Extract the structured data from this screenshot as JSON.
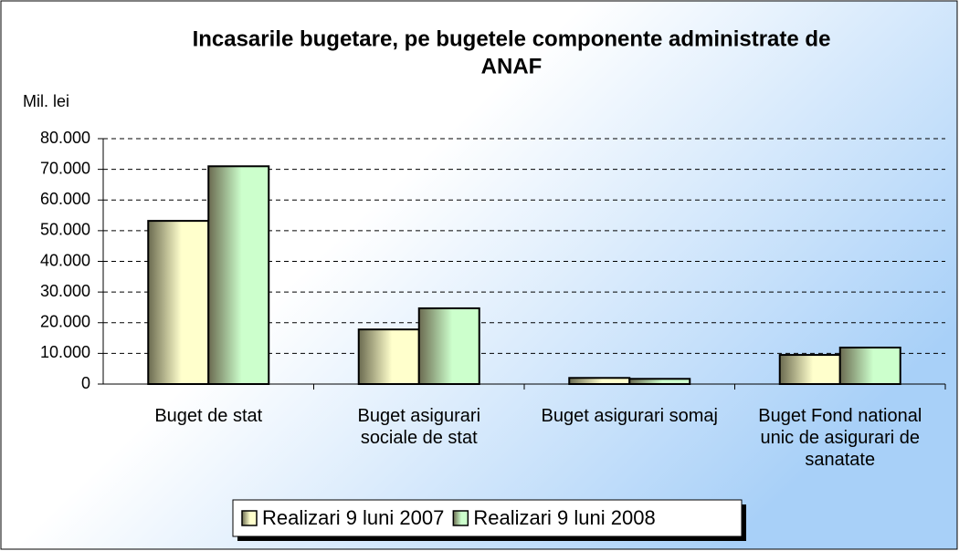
{
  "chart_data": {
    "type": "bar",
    "title": [
      "Incasarile bugetare, pe bugetele componente administrate de",
      "ANAF"
    ],
    "y_label": "Mil. lei",
    "categories": [
      "Buget de stat",
      "Buget asigurari sociale de stat",
      "Buget asigurari somaj",
      "Buget Fond national unic de asigurari de sanatate"
    ],
    "series": [
      {
        "name": "Realizari 9 luni 2007",
        "color": "#ffffcc",
        "values": [
          53200,
          17800,
          2000,
          9500
        ]
      },
      {
        "name": "Realizari 9 luni 2008",
        "color": "#ccffcc",
        "values": [
          71000,
          24700,
          1700,
          11900
        ]
      }
    ],
    "ylim": [
      0,
      80000
    ],
    "yticks": [
      0,
      {
        "value": 10000,
        "label": "10.000"
      },
      {
        "value": 20000,
        "label": "20.000"
      },
      {
        "value": 30000,
        "label": "30.000"
      },
      {
        "value": 40000,
        "label": "40.000"
      },
      {
        "value": 50000,
        "label": "50.000"
      },
      {
        "value": 60000,
        "label": "60.000"
      },
      {
        "value": 70000,
        "label": "70.000"
      },
      {
        "value": 80000,
        "label": "80.000"
      }
    ],
    "grid": true,
    "legend": "bottom"
  }
}
